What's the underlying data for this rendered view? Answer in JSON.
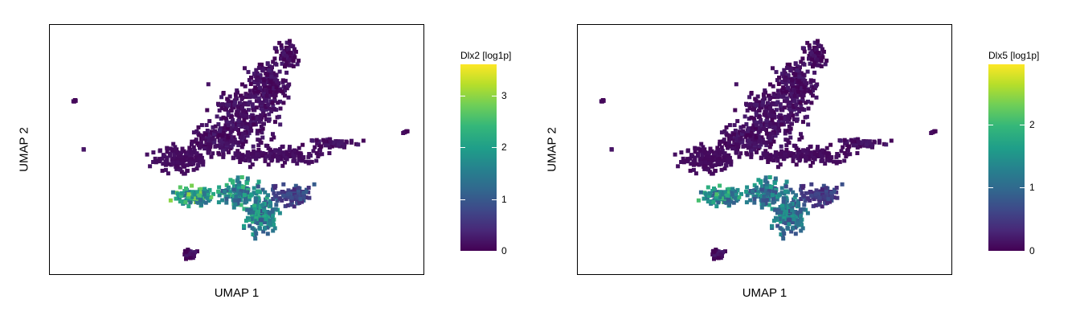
{
  "chart_data": [
    {
      "type": "scatter",
      "title": "",
      "xlabel": "UMAP 1",
      "ylabel": "UMAP 2",
      "color_label": "Dlx2 [log1p]",
      "color_ticks": [
        "0",
        "1",
        "2",
        "3"
      ],
      "color_range": [
        0,
        3.6
      ],
      "colormap": "viridis",
      "grid": false,
      "legend": "right colorbar",
      "expression_pattern": "high in lower-central cluster",
      "hot_value": 3.0
    },
    {
      "type": "scatter",
      "title": "",
      "xlabel": "UMAP 1",
      "ylabel": "UMAP 2",
      "color_label": "Dlx5 [log1p]",
      "color_ticks": [
        "0",
        "1",
        "2"
      ],
      "color_range": [
        0,
        2.95
      ],
      "colormap": "viridis",
      "grid": false,
      "legend": "right colorbar",
      "expression_pattern": "moderate in lower-central cluster",
      "hot_value": 2.1
    }
  ],
  "colors": {
    "viridis": [
      "#440154",
      "#482878",
      "#3e4989",
      "#31688e",
      "#26828e",
      "#1f9e89",
      "#35b779",
      "#6ece58",
      "#b5de2b",
      "#fde725"
    ],
    "frame": "#000000",
    "background": "#ffffff"
  }
}
